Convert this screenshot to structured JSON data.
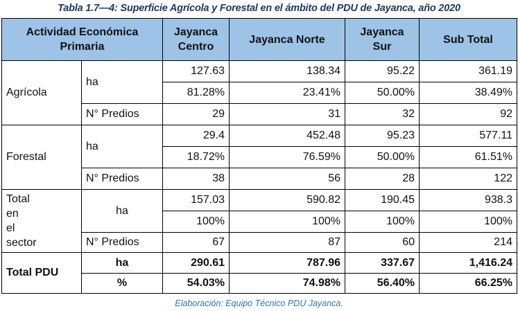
{
  "title": "Tabla 1.7—4: Superficie Agrícola y Forestal en el ámbito del PDU de Jayanca, año 2020",
  "note": "Elaboración: Equipo Técnico PDU Jayanca.",
  "header": {
    "activity": "Actividad Económica Primaria",
    "col1": "Jayanca Centro",
    "col2": "Jayanca Norte",
    "col3": "Jayanca Sur",
    "col4": "Sub Total"
  },
  "units": {
    "ha": "ha",
    "predios": "N° Predios",
    "pct": "%"
  },
  "agricola": {
    "label": "Agrícola",
    "ha": [
      "127.63",
      "138.34",
      "95.22",
      "361.19"
    ],
    "pct": [
      "81.28%",
      "23.41%",
      "50.00%",
      "38.49%"
    ],
    "predios": [
      "29",
      "31",
      "32",
      "92"
    ]
  },
  "forestal": {
    "label": "Forestal",
    "ha": [
      "29.4",
      "452.48",
      "95.23",
      "577.11"
    ],
    "pct": [
      "18.72%",
      "76.59%",
      "50.00%",
      "61.51%"
    ],
    "predios": [
      "38",
      "56",
      "28",
      "122"
    ]
  },
  "sector": {
    "label_words": [
      "Total",
      "en",
      "el"
    ],
    "label_line2": "sector",
    "ha": [
      "157.03",
      "590.82",
      "190.45",
      "938.3"
    ],
    "pct": [
      "100%",
      "100%",
      "100%",
      "100%"
    ],
    "predios": [
      "67",
      "87",
      "60",
      "214"
    ]
  },
  "total_pdu": {
    "label": "Total PDU",
    "ha": [
      "290.61",
      "787.96",
      "337.67",
      "1,416.24"
    ],
    "pct": [
      "54.03%",
      "74.98%",
      "56.40%",
      "66.25%"
    ]
  }
}
